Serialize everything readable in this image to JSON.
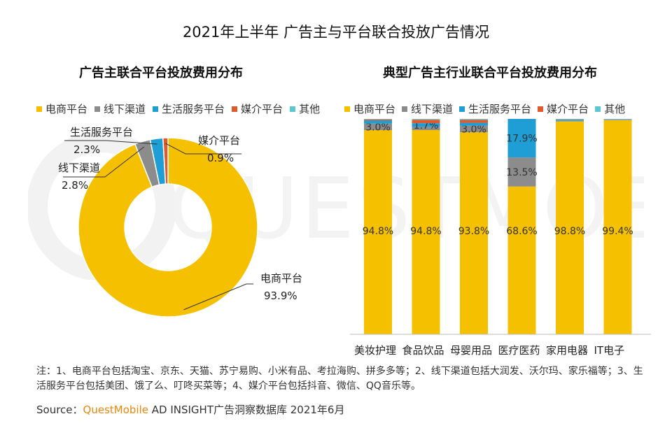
{
  "title": "2021年上半年 广告主与平台联合投放广告情况",
  "watermark": "QUESTMOBILE",
  "colors": {
    "ecommerce": "#F5C000",
    "offline": "#8C8C8C",
    "life_service": "#1F9ED6",
    "media": "#E05A2B",
    "other": "#5BC8D1"
  },
  "legend": [
    "电商平台",
    "线下渠道",
    "生活服务平台",
    "媒介平台",
    "其他"
  ],
  "chart_data": [
    {
      "type": "pie",
      "title": "广告主联合平台投放费用分布",
      "labels": [
        "电商平台",
        "线下渠道",
        "生活服务平台",
        "媒介平台"
      ],
      "values": [
        93.9,
        2.8,
        2.3,
        0.9
      ],
      "value_labels": [
        "93.9%",
        "2.8%",
        "2.3%",
        "0.9%"
      ]
    },
    {
      "type": "bar",
      "stacked": true,
      "title": "典型广告主行业联合平台投放费用分布",
      "categories": [
        "美妆护理",
        "食品饮品",
        "母婴用品",
        "医疗医药",
        "家用电器",
        "IT电子"
      ],
      "ylim": [
        0,
        100
      ],
      "series": [
        {
          "name": "电商平台",
          "values": [
            94.8,
            94.8,
            93.8,
            68.6,
            98.8,
            99.4
          ],
          "labels": [
            "94.8%",
            "94.8%",
            "93.8%",
            "68.6%",
            "98.8%",
            "99.4%"
          ]
        },
        {
          "name": "线下渠道",
          "values": [
            3.0,
            1.5,
            3.0,
            13.5,
            0.3,
            0.2
          ],
          "labels": [
            "3.0%",
            "",
            "3.0%",
            "13.5%",
            "",
            ""
          ]
        },
        {
          "name": "生活服务平台",
          "values": [
            1.4,
            1.7,
            1.4,
            17.9,
            0.5,
            0.2
          ],
          "labels": [
            "",
            "1.7%",
            "",
            "17.9%",
            "",
            ""
          ]
        },
        {
          "name": "媒介平台",
          "values": [
            0.5,
            1.6,
            1.4,
            0.0,
            0.2,
            0.1
          ],
          "labels": [
            "",
            "",
            "",
            "",
            "",
            ""
          ]
        },
        {
          "name": "其他",
          "values": [
            0.3,
            0.4,
            0.4,
            0.0,
            0.2,
            0.1
          ],
          "labels": [
            "",
            "",
            "",
            "",
            "",
            ""
          ]
        }
      ]
    }
  ],
  "note": "注：1、电商平台包括淘宝、京东、天猫、苏宁易购、小米有品、考拉海购、拼多多等；2、线下渠道包括大润发、沃尔玛、家乐福等；3、生活服务平台包括美团、饿了么、叮咚买菜等；4、媒介平台包括抖音、微信、QQ音乐等。",
  "source": {
    "prefix": "Source：",
    "brand": "QuestMobile",
    "rest": " AD INSIGHT广告洞察数据库 2021年6月"
  }
}
